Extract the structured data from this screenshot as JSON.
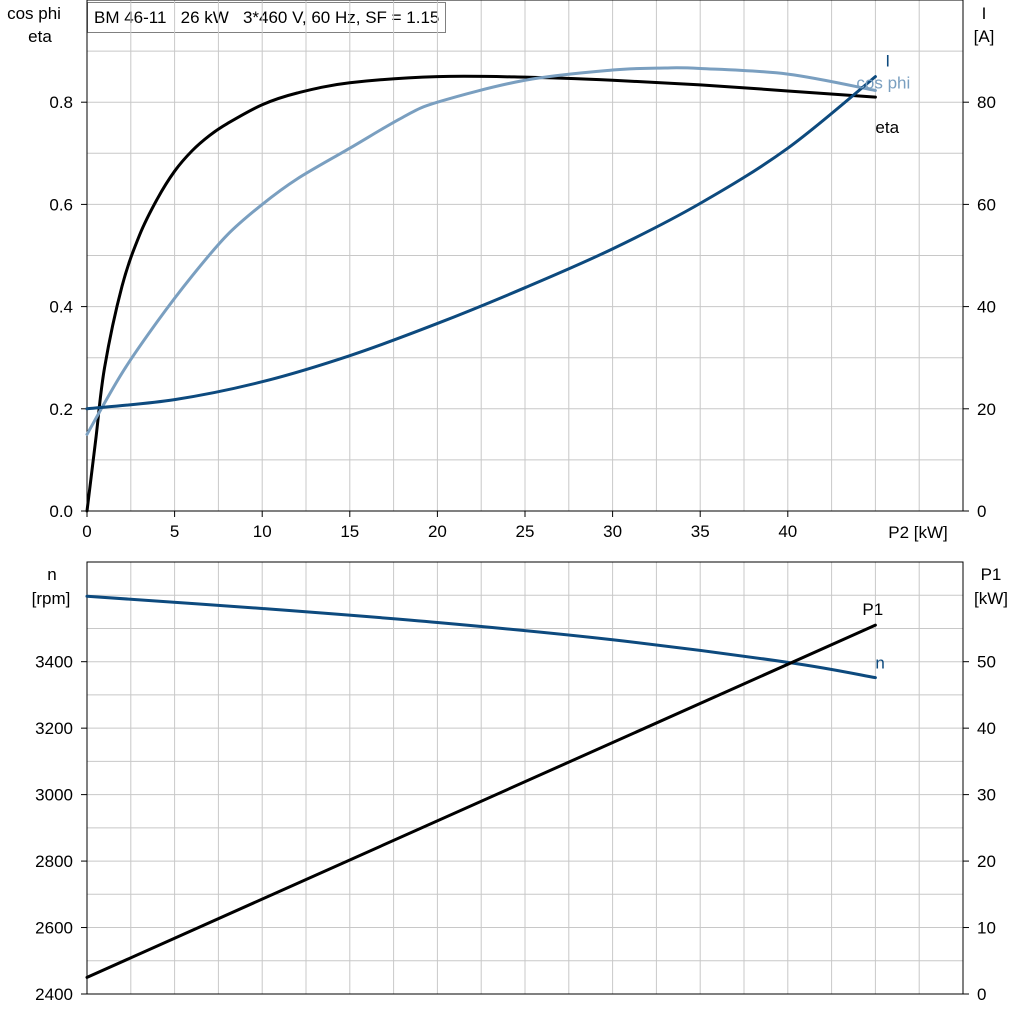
{
  "title": "BM 46-11   26 kW   3*460 V, 60 Hz, SF = 1.15",
  "colors": {
    "eta": "#000000",
    "cos_phi": "#7a9fc0",
    "I": "#0d4a7e",
    "n": "#0d4a7e",
    "P1": "#000000",
    "grid": "#c8c8c8"
  },
  "chart_data": [
    {
      "type": "line",
      "name": "top",
      "xlabel": "P2 [kW]",
      "x_ticks": [
        0,
        5,
        10,
        15,
        20,
        25,
        30,
        35,
        40
      ],
      "xlim": [
        0,
        50
      ],
      "y_left_label_lines": [
        "cos phi",
        "eta"
      ],
      "y_left_ticks": [
        "0.0",
        "0.2",
        "0.4",
        "0.6",
        "0.8"
      ],
      "y_left_lim": [
        0,
        1.0
      ],
      "y_right_label_lines": [
        "I",
        "[A]"
      ],
      "y_right_ticks": [
        "0",
        "20",
        "40",
        "60",
        "80"
      ],
      "y_right_lim": [
        0,
        100
      ],
      "grid": true,
      "series": [
        {
          "name": "eta",
          "axis": "left",
          "color_key": "eta",
          "x": [
            0,
            0.5,
            1,
            2,
            3,
            4,
            5,
            6,
            7,
            8,
            10,
            12,
            15,
            20,
            25,
            30,
            35,
            40,
            45
          ],
          "y": [
            0,
            0.14,
            0.28,
            0.44,
            0.54,
            0.61,
            0.665,
            0.705,
            0.735,
            0.758,
            0.795,
            0.818,
            0.838,
            0.85,
            0.849,
            0.843,
            0.834,
            0.822,
            0.81
          ]
        },
        {
          "name": "cos phi",
          "axis": "left",
          "color_key": "cos_phi",
          "x": [
            0,
            2,
            4,
            6,
            8,
            10,
            12,
            15,
            18,
            20,
            25,
            30,
            33,
            35,
            40,
            45
          ],
          "y": [
            0.15,
            0.27,
            0.37,
            0.46,
            0.54,
            0.6,
            0.65,
            0.71,
            0.77,
            0.8,
            0.843,
            0.863,
            0.867,
            0.866,
            0.855,
            0.823
          ]
        },
        {
          "name": "I",
          "axis": "right",
          "color_key": "I",
          "x": [
            0,
            5,
            10,
            15,
            20,
            25,
            30,
            35,
            40,
            45
          ],
          "y": [
            20,
            21.8,
            25.3,
            30.4,
            36.7,
            43.7,
            51.3,
            60.2,
            71.0,
            85.0
          ]
        }
      ]
    },
    {
      "type": "line",
      "name": "bottom",
      "xlim": [
        0,
        50
      ],
      "y_left_label_lines": [
        "n",
        "[rpm]"
      ],
      "y_left_ticks": [
        "2400",
        "2600",
        "2800",
        "3000",
        "3200",
        "3400"
      ],
      "y_left_lim": [
        2400,
        3700
      ],
      "y_right_label_lines": [
        "P1",
        "[kW]"
      ],
      "y_right_ticks": [
        "0",
        "10",
        "20",
        "30",
        "40",
        "50"
      ],
      "y_right_lim": [
        0,
        65
      ],
      "grid": true,
      "series": [
        {
          "name": "n",
          "axis": "left",
          "color_key": "n",
          "x": [
            0,
            10,
            20,
            30,
            40,
            45
          ],
          "y": [
            3597,
            3560,
            3518,
            3466,
            3398,
            3352
          ]
        },
        {
          "name": "P1",
          "axis": "right",
          "color_key": "P1",
          "x": [
            0,
            45
          ],
          "y": [
            2.5,
            55.5
          ]
        }
      ]
    }
  ]
}
